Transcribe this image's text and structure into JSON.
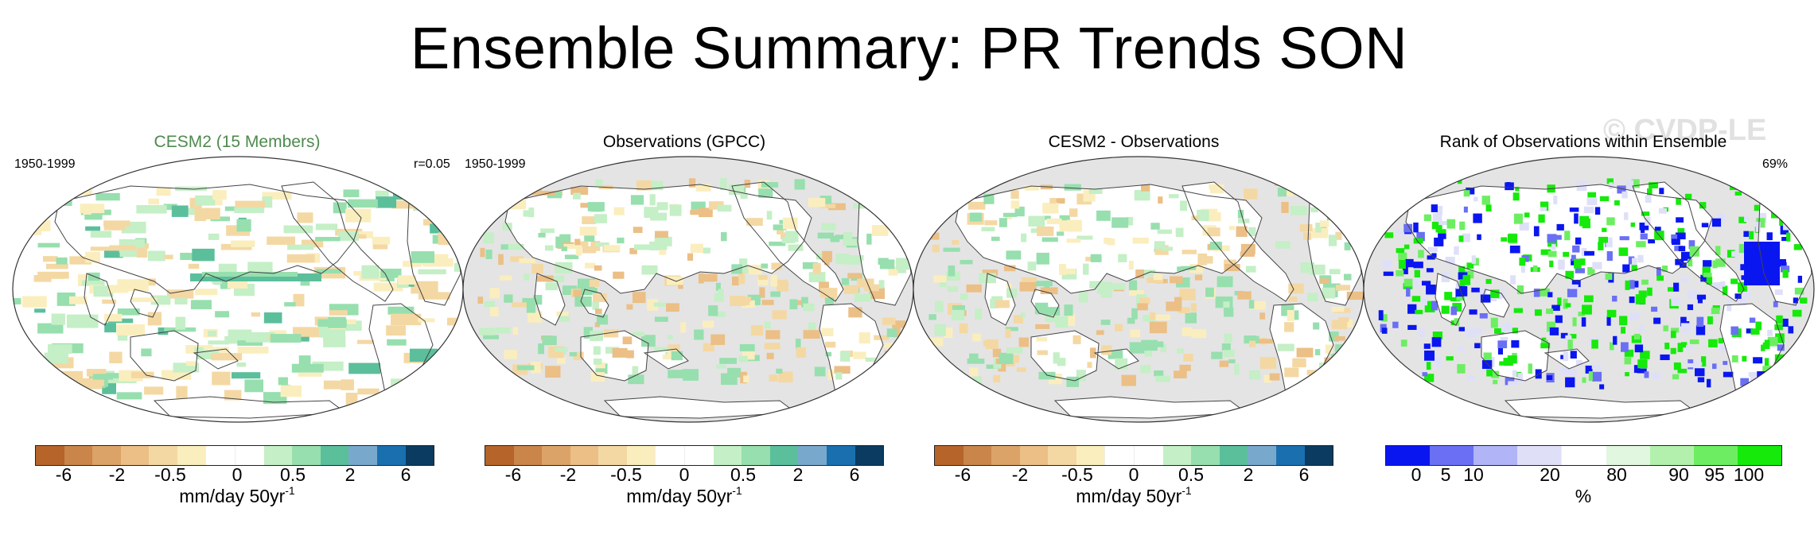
{
  "title": "Ensemble Summary: PR Trends SON",
  "watermark": "© CVDP-LE",
  "chart_data": [
    {
      "type": "heatmap",
      "title": "CESM2 (15 Members)",
      "left_label": "1950-1999",
      "right_label": "r=0.05",
      "colorbar": {
        "tick_labels": [
          "-6",
          "-2",
          "-0.5",
          "0",
          "0.5",
          "2",
          "6"
        ],
        "colors": [
          "#b6642a",
          "#c9854a",
          "#dca368",
          "#ebbf86",
          "#f4d8a3",
          "#fbeebe",
          "#ffffff",
          "#ffffff",
          "#c5efc6",
          "#97dfae",
          "#5cbf9c",
          "#78a9cc",
          "#1a6faf",
          "#0b3b60"
        ],
        "unit": "mm/day 50yr",
        "unit_exp": "-1"
      }
    },
    {
      "type": "heatmap",
      "title": "Observations (GPCC)",
      "left_label": "1950-1999",
      "right_label": "",
      "colorbar": {
        "tick_labels": [
          "-6",
          "-2",
          "-0.5",
          "0",
          "0.5",
          "2",
          "6"
        ],
        "colors": [
          "#b6642a",
          "#c9854a",
          "#dca368",
          "#ebbf86",
          "#f4d8a3",
          "#fbeebe",
          "#ffffff",
          "#ffffff",
          "#c5efc6",
          "#97dfae",
          "#5cbf9c",
          "#78a9cc",
          "#1a6faf",
          "#0b3b60"
        ],
        "unit": "mm/day 50yr",
        "unit_exp": "-1"
      }
    },
    {
      "type": "heatmap",
      "title": "CESM2 - Observations",
      "left_label": "",
      "right_label": "",
      "colorbar": {
        "tick_labels": [
          "-6",
          "-2",
          "-0.5",
          "0",
          "0.5",
          "2",
          "6"
        ],
        "colors": [
          "#b6642a",
          "#c9854a",
          "#dca368",
          "#ebbf86",
          "#f4d8a3",
          "#fbeebe",
          "#ffffff",
          "#ffffff",
          "#c5efc6",
          "#97dfae",
          "#5cbf9c",
          "#78a9cc",
          "#1a6faf",
          "#0b3b60"
        ],
        "unit": "mm/day 50yr",
        "unit_exp": "-1"
      }
    },
    {
      "type": "heatmap",
      "title": "Rank of Observations within Ensemble",
      "left_label": "",
      "right_label": "69%",
      "colorbar": {
        "tick_labels": [
          "0",
          "5",
          "10",
          "20",
          "80",
          "90",
          "95",
          "100"
        ],
        "colors": [
          "#0a16f0",
          "#6a6ff4",
          "#b1b4f6",
          "#dfe0f8",
          "#ffffff",
          "#e1f7df",
          "#b4f0ad",
          "#6dee62",
          "#15ea0a"
        ],
        "unit": "%",
        "unit_exp": ""
      }
    }
  ]
}
